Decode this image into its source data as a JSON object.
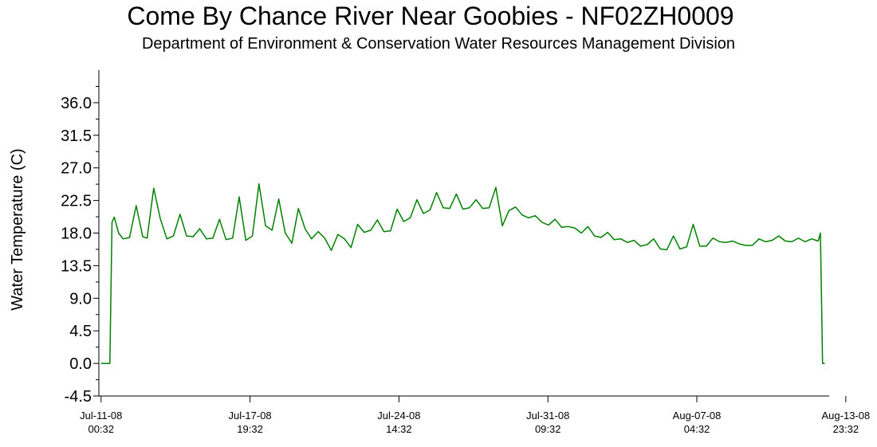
{
  "chart_data": {
    "type": "line",
    "title": "Come By Chance River Near Goobies - NF02ZH0009",
    "subtitle": "Department of Environment & Conservation Water Resources Management Division",
    "xlabel": "",
    "ylabel": "Water Temperature (C)",
    "ylim": [
      -4.5,
      40.5
    ],
    "y_ticks": [
      "-4.5",
      "0.0",
      "4.5",
      "9.0",
      "13.5",
      "18.0",
      "22.5",
      "27.0",
      "31.5",
      "36.0"
    ],
    "x_range_days": [
      -0.1,
      33.2
    ],
    "x_ticks": [
      {
        "date": "Jul-11-08",
        "time": "00:32"
      },
      {
        "date": "Jul-17-08",
        "time": "19:32"
      },
      {
        "date": "Jul-24-08",
        "time": "14:32"
      },
      {
        "date": "Jul-31-08",
        "time": "09:32"
      },
      {
        "date": "Aug-07-08",
        "time": "04:32"
      },
      {
        "date": "Aug-13-08",
        "time": "23:32"
      }
    ],
    "grid": false,
    "legend": "none",
    "line_color": "#008000",
    "series": [
      {
        "name": "",
        "x": [
          0.0,
          0.4,
          0.45,
          0.5,
          0.6,
          0.8,
          1.0,
          1.3,
          1.6,
          1.9,
          2.1,
          2.4,
          2.7,
          3.0,
          3.3,
          3.6,
          3.9,
          4.2,
          4.5,
          4.8,
          5.1,
          5.4,
          5.7,
          6.0,
          6.3,
          6.6,
          6.9,
          7.2,
          7.5,
          7.8,
          8.1,
          8.4,
          8.7,
          9.0,
          9.3,
          9.6,
          9.9,
          10.2,
          10.5,
          10.8,
          11.1,
          11.4,
          11.7,
          12.0,
          12.3,
          12.6,
          12.9,
          13.2,
          13.5,
          13.8,
          14.1,
          14.4,
          14.7,
          15.0,
          15.3,
          15.6,
          15.9,
          16.2,
          16.5,
          16.8,
          17.1,
          17.4,
          17.7,
          18.0,
          18.3,
          18.6,
          18.9,
          19.2,
          19.5,
          19.8,
          20.1,
          20.4,
          20.7,
          21.0,
          21.3,
          21.6,
          21.9,
          22.2,
          22.5,
          22.8,
          23.1,
          23.4,
          23.7,
          24.0,
          24.3,
          24.6,
          24.9,
          25.2,
          25.5,
          25.8,
          26.1,
          26.4,
          26.7,
          27.0,
          27.3,
          27.6,
          27.9,
          28.2,
          28.5,
          28.8,
          29.1,
          29.4,
          29.7,
          30.0,
          30.3,
          30.6,
          30.9,
          31.2,
          31.5,
          31.8,
          32.1,
          32.4,
          32.7,
          32.8,
          32.85,
          32.9,
          33.0
        ],
        "y": [
          0.0,
          0.0,
          9.5,
          19.5,
          20.2,
          18.0,
          17.2,
          17.4,
          21.8,
          17.5,
          17.3,
          24.2,
          20.0,
          17.2,
          17.6,
          20.6,
          17.6,
          17.5,
          18.6,
          17.2,
          17.3,
          19.9,
          17.1,
          17.3,
          23.0,
          17.0,
          17.6,
          24.8,
          19.0,
          18.4,
          22.7,
          18.0,
          16.6,
          21.4,
          18.6,
          17.2,
          18.2,
          17.3,
          15.6,
          17.8,
          17.2,
          16.0,
          19.2,
          18.1,
          18.4,
          19.8,
          18.2,
          18.3,
          21.3,
          19.6,
          20.1,
          22.6,
          20.7,
          21.2,
          23.6,
          21.5,
          21.4,
          23.4,
          21.3,
          21.5,
          22.6,
          21.4,
          21.5,
          24.3,
          19.0,
          21.1,
          21.6,
          20.5,
          20.1,
          20.4,
          19.5,
          19.1,
          19.9,
          18.8,
          18.9,
          18.7,
          18.0,
          18.9,
          17.6,
          17.4,
          18.1,
          17.1,
          17.2,
          16.7,
          17.0,
          16.2,
          16.4,
          17.2,
          15.8,
          15.7,
          17.6,
          15.8,
          16.1,
          19.2,
          16.2,
          16.2,
          17.3,
          16.8,
          16.7,
          16.9,
          16.5,
          16.3,
          16.3,
          17.2,
          16.8,
          17.0,
          17.6,
          16.9,
          16.8,
          17.3,
          16.8,
          17.2,
          16.9,
          18.0,
          9.0,
          0.0,
          0.0
        ]
      }
    ]
  }
}
